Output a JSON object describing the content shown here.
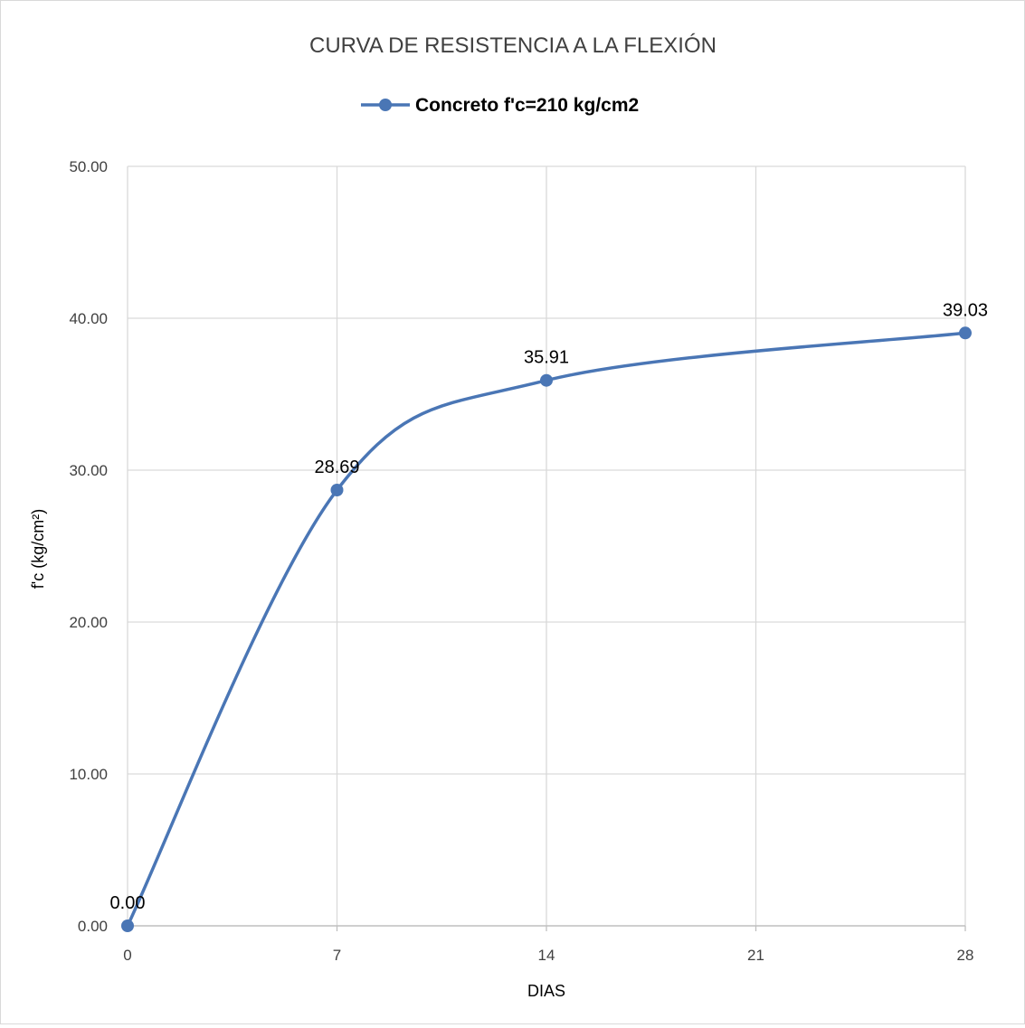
{
  "chart_data": {
    "type": "line",
    "title": "CURVA DE RESISTENCIA A LA FLEXIÓN",
    "xlabel": "DIAS",
    "ylabel": "f'c (kg/cm²)",
    "x": [
      0,
      7,
      14,
      28
    ],
    "xticks": [
      "0",
      "7",
      "14",
      "21",
      "28"
    ],
    "xtick_values": [
      0,
      7,
      14,
      21,
      28
    ],
    "yticks": [
      "0.00",
      "10.00",
      "20.00",
      "30.00",
      "40.00",
      "50.00"
    ],
    "ytick_values": [
      0,
      10,
      20,
      30,
      40,
      50
    ],
    "xlim": [
      0,
      28
    ],
    "ylim": [
      0,
      50
    ],
    "grid": true,
    "smooth": true,
    "legend_position": "top",
    "series": [
      {
        "name": "Concreto f'c=210 kg/cm2",
        "values": [
          0.0,
          28.69,
          35.91,
          39.03
        ],
        "labels": [
          "0.00",
          "28.69",
          "35.91",
          "39.03"
        ],
        "color": "#4a76b5"
      }
    ]
  }
}
